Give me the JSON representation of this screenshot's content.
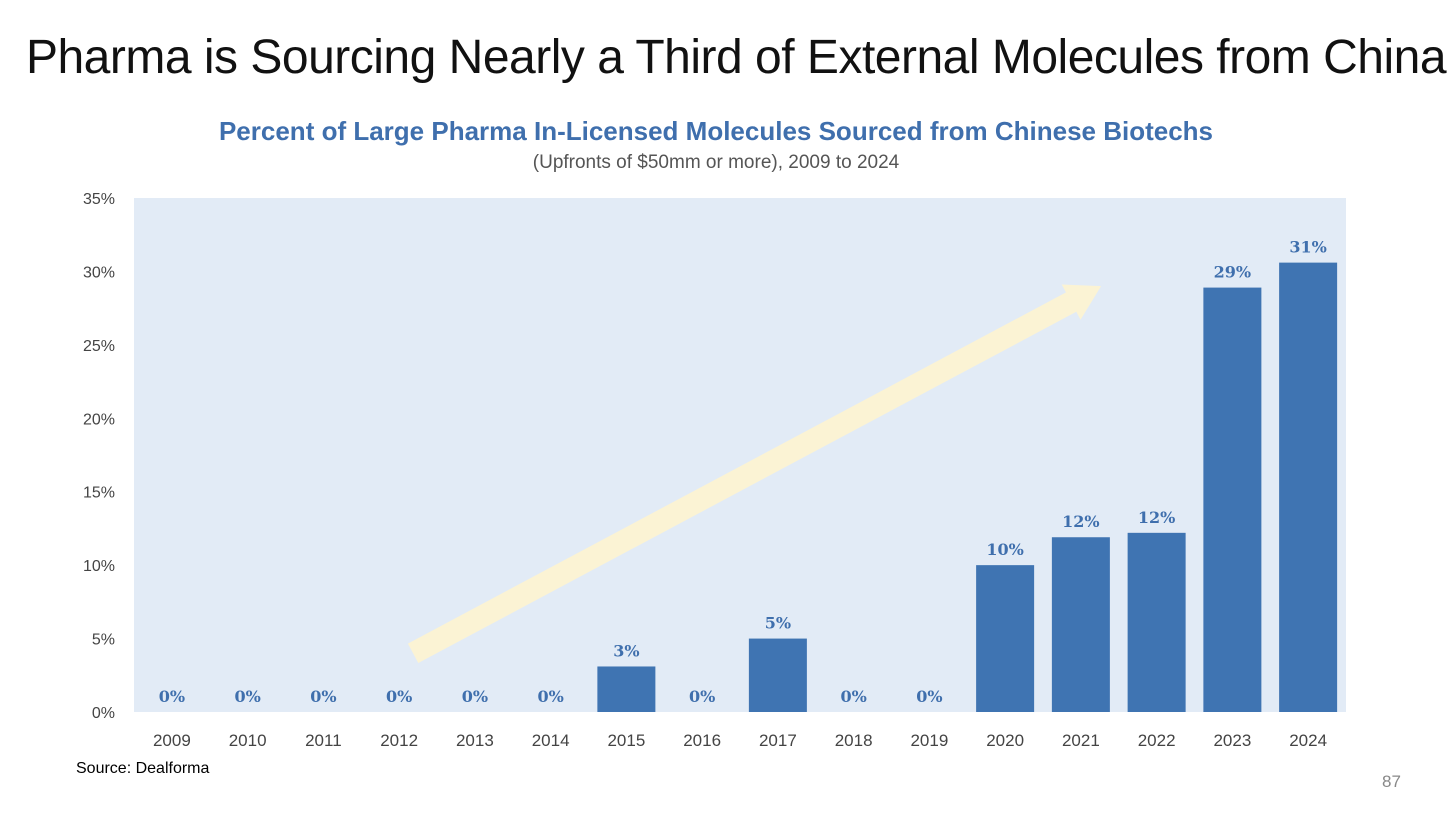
{
  "slide": {
    "title": "Pharma is Sourcing Nearly a Third of External Molecules from China",
    "source": "Source: Dealforma",
    "page_number": "87"
  },
  "colors": {
    "plot_background": "#e2ebf6",
    "bar": "#3f74b2",
    "data_label": "#3f6fad",
    "arrow": "#fbf3d4",
    "axis_text": "#444444"
  },
  "chart_data": {
    "type": "bar",
    "title": "Percent of Large Pharma In-Licensed Molecules Sourced from Chinese Biotechs",
    "subtitle": "(Upfronts of $50mm or more), 2009 to 2024",
    "xlabel": "",
    "ylabel": "",
    "categories": [
      "2009",
      "2010",
      "2011",
      "2012",
      "2013",
      "2014",
      "2015",
      "2016",
      "2017",
      "2018",
      "2019",
      "2020",
      "2021",
      "2022",
      "2023",
      "2024"
    ],
    "values": [
      0,
      0,
      0,
      0,
      0,
      0,
      3.1,
      0,
      5.0,
      0,
      0,
      10.0,
      11.9,
      12.2,
      28.9,
      30.6
    ],
    "data_labels": [
      "0%",
      "0%",
      "0%",
      "0%",
      "0%",
      "0%",
      "3%",
      "0%",
      "5%",
      "0%",
      "0%",
      "10%",
      "12%",
      "12%",
      "29%",
      "31%"
    ],
    "ylim": [
      0,
      35
    ],
    "yticks": [
      0,
      5,
      10,
      15,
      20,
      25,
      30,
      35
    ],
    "ytick_labels": [
      "0%",
      "5%",
      "10%",
      "15%",
      "20%",
      "25%",
      "30%",
      "35%"
    ],
    "grid": false,
    "legend": "none",
    "annotation": {
      "type": "trend-arrow",
      "from_category": "2012",
      "from_value": 4,
      "to_category": "2020",
      "to_value": 29
    }
  }
}
